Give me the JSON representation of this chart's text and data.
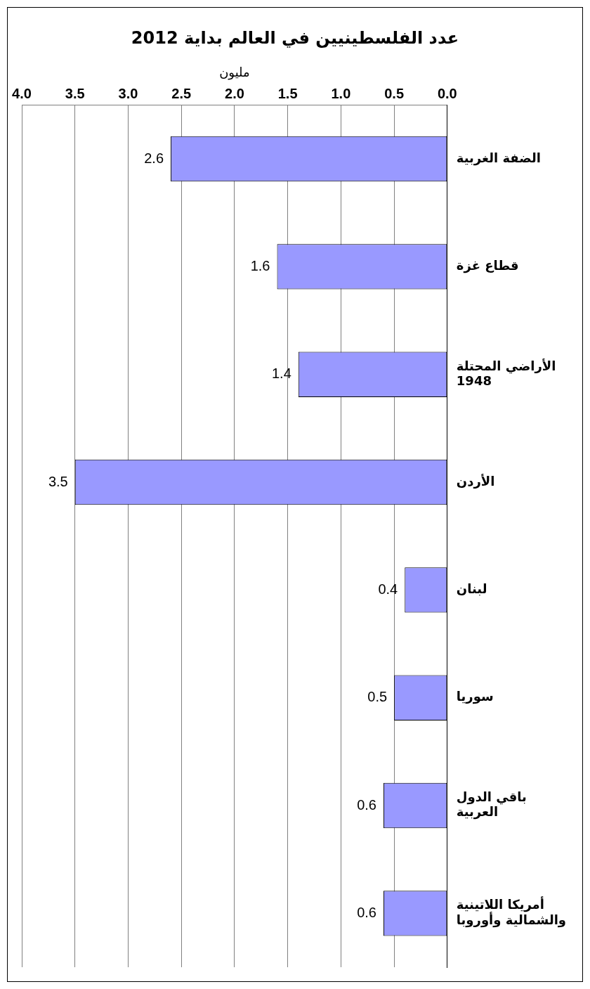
{
  "chart_data": {
    "type": "bar",
    "orientation": "horizontal",
    "title": "عدد الفلسطينيين في العالم بداية 2012",
    "xlabel": "مليون",
    "categories": [
      "الضفة الغربية",
      "قطاع غزة",
      "الأراضي المحتلة 1948",
      "الأردن",
      "لبنان",
      "سوريا",
      "باقي الدول العربية",
      "أمريكا اللاتينية والشمالية وأوروبا"
    ],
    "values": [
      2.6,
      1.6,
      1.4,
      3.5,
      0.4,
      0.5,
      0.6,
      0.6
    ],
    "color": "#9999ff",
    "xlim": [
      4,
      0
    ],
    "xticks": [
      {
        "value": 4,
        "label": "4.0"
      },
      {
        "value": 3.5,
        "label": "3.5"
      },
      {
        "value": 3,
        "label": "3.0"
      },
      {
        "value": 2.5,
        "label": "2.5"
      },
      {
        "value": 2,
        "label": "2.0"
      },
      {
        "value": 1.5,
        "label": "1.5"
      },
      {
        "value": 1,
        "label": "1.0"
      },
      {
        "value": 0.5,
        "label": "0.5"
      },
      {
        "value": 0,
        "label": "0.0"
      }
    ],
    "grid": "x",
    "data_labels": true
  }
}
